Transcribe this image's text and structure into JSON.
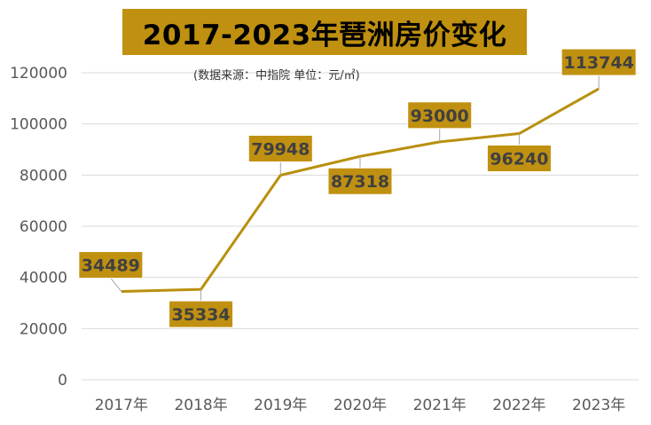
{
  "chart_data": {
    "type": "line",
    "title": "2017-2023年琶洲房价变化",
    "subtitle": "(数据来源：中指院   单位：元/㎡)",
    "categories": [
      "2017年",
      "2018年",
      "2019年",
      "2020年",
      "2021年",
      "2022年",
      "2023年"
    ],
    "series": [
      {
        "values": [
          34489,
          35334,
          79948,
          87318,
          93000,
          96240,
          113744
        ]
      }
    ],
    "data_labels": [
      "34489",
      "35334",
      "79948",
      "87318",
      "93000",
      "96240",
      "113744"
    ],
    "label_placement": [
      "above",
      "below",
      "above",
      "below",
      "above",
      "below",
      "above"
    ],
    "ylim": [
      0,
      120000
    ],
    "yticks": [
      0,
      20000,
      40000,
      60000,
      80000,
      100000,
      120000
    ],
    "ytick_labels": [
      "0",
      "20000",
      "40000",
      "60000",
      "80000",
      "100000",
      "120000"
    ],
    "grid": true,
    "legend": "none",
    "line_color": "#b8900f",
    "label_bg_color": "#c09010",
    "grid_color": "#d9d9d9"
  }
}
